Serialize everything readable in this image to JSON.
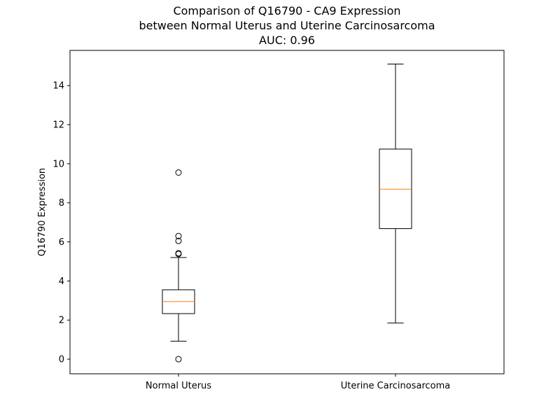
{
  "chart_data": {
    "type": "box",
    "title_lines": [
      "Comparison of Q16790 - CA9 Expression",
      "between Normal Uterus and Uterine Carcinosarcoma",
      "AUC: 0.96"
    ],
    "xlabel": "",
    "ylabel": "Q16790 Expression",
    "ylim": [
      -0.75,
      15.8
    ],
    "yticks": [
      0,
      2,
      4,
      6,
      8,
      10,
      12,
      14
    ],
    "grid": false,
    "categories": [
      "Normal Uterus",
      "Uterine Carcinosarcoma"
    ],
    "boxes": [
      {
        "category": "Normal Uterus",
        "whisker_low": 0.92,
        "q1": 2.33,
        "median": 2.95,
        "q3": 3.55,
        "whisker_high": 5.2,
        "outliers": [
          9.55,
          6.3,
          6.05,
          5.42,
          5.38,
          0.0
        ]
      },
      {
        "category": "Uterine Carcinosarcoma",
        "whisker_low": 1.85,
        "q1": 6.68,
        "median": 8.7,
        "q3": 10.75,
        "whisker_high": 15.1,
        "outliers": []
      }
    ],
    "colors": {
      "box": "#000000",
      "median": "#ff7f0e",
      "axes": "#000000"
    }
  }
}
